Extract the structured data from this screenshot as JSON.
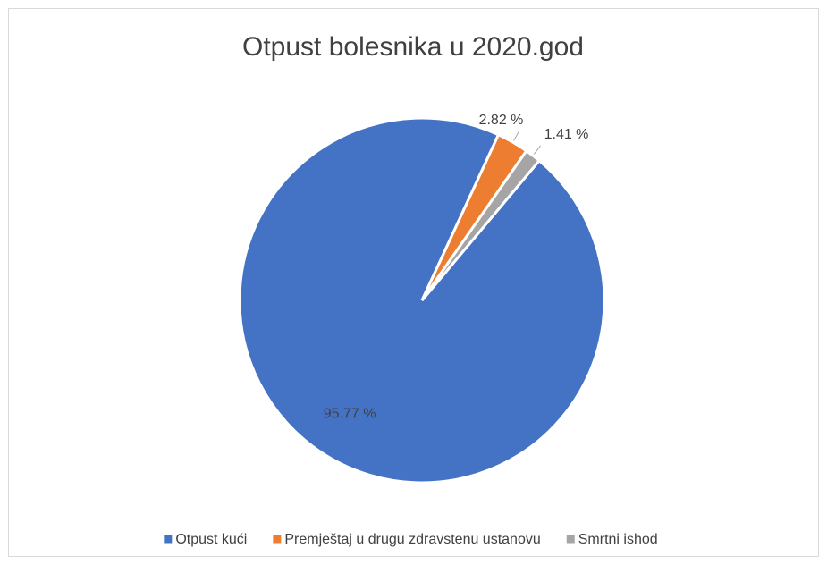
{
  "chart_data": {
    "type": "pie",
    "title": "Otpust bolesnika u 2020.god",
    "categories": [
      "Otpust kući",
      "Premještaj u drugu zdravstenu ustanovu",
      "Smrtni ishod"
    ],
    "values": [
      95.77,
      2.82,
      1.41
    ],
    "value_labels": [
      "95.77 %",
      "2.82 %",
      "1.41 %"
    ],
    "colors": [
      "#4472c4",
      "#ed7d31",
      "#a5a5a5"
    ],
    "legend": "bottom"
  }
}
